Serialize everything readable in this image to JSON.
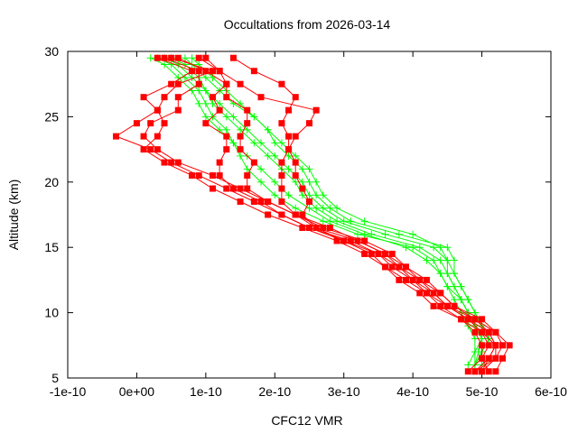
{
  "chart_data": {
    "type": "line",
    "title": "Occultations from 2026-03-14",
    "xlabel": "CFC12 VMR",
    "ylabel": "Altitude (km)",
    "xlim": [
      -1e-10,
      6e-10
    ],
    "ylim": [
      5,
      30
    ],
    "xticks": [
      -1e-10,
      0,
      1e-10,
      2e-10,
      3e-10,
      4e-10,
      5e-10,
      6e-10
    ],
    "xtick_labels": [
      "-1e-10",
      "0e+00",
      "1e-10",
      "2e-10",
      "3e-10",
      "4e-10",
      "5e-10",
      "6e-10"
    ],
    "yticks": [
      5,
      10,
      15,
      20,
      25,
      30
    ],
    "ytick_labels": [
      "5",
      "10",
      "15",
      "20",
      "25",
      "30"
    ],
    "grid": false,
    "colors": {
      "red_series": "#ff0000",
      "green_series": "#00ff00"
    },
    "red_altitudes": [
      5.5,
      6.5,
      7.5,
      8.5,
      9.5,
      10.5,
      11.5,
      12.5,
      13.5,
      14.5,
      15.5,
      16.5,
      17.5,
      18.5,
      19.5,
      20.5,
      21.5,
      22.5,
      23.5,
      24.5,
      25.5,
      26.5,
      27.5,
      28.5,
      29.5
    ],
    "red_profiles": [
      [
        4.9e-10,
        5.1e-10,
        5.2e-10,
        5.1e-10,
        4.9e-10,
        4.5e-10,
        4.3e-10,
        4.1e-10,
        3.8e-10,
        3.5e-10,
        3.1e-10,
        2.5e-10,
        2.1e-10,
        1.7e-10,
        1.3e-10,
        9e-11,
        5e-11,
        2e-11,
        -3e-11,
        0.0,
        3e-11,
        1e-11,
        5e-11,
        8e-11,
        3e-11
      ],
      [
        5.2e-10,
        5.3e-10,
        5.4e-10,
        5.2e-10,
        4.9e-10,
        4.6e-10,
        4.4e-10,
        4.2e-10,
        3.9e-10,
        3.7e-10,
        3.3e-10,
        2.7e-10,
        2.3e-10,
        1.9e-10,
        1.5e-10,
        1.1e-10,
        6e-11,
        3e-11,
        1e-11,
        2e-11,
        6e-11,
        6e-11,
        9e-11,
        9e-11,
        4e-11
      ],
      [
        4.8e-10,
        5e-10,
        5e-10,
        4.9e-10,
        4.7e-10,
        4.3e-10,
        4.1e-10,
        3.8e-10,
        3.6e-10,
        3.3e-10,
        2.9e-10,
        2.4e-10,
        1.9e-10,
        1.5e-10,
        1.1e-10,
        8e-11,
        4e-11,
        1e-11,
        3e-11,
        4e-11,
        3e-11,
        4e-11,
        6e-11,
        1.1e-10,
        5e-11
      ],
      [
        5e-10,
        5.1e-10,
        5.2e-10,
        5e-10,
        4.8e-10,
        4.5e-10,
        4.2e-10,
        4e-10,
        3.7e-10,
        3.5e-10,
        3e-10,
        2.5e-10,
        2.1e-10,
        1.8e-10,
        1.4e-10,
        1.2e-10,
        1.2e-10,
        1.3e-10,
        1.3e-10,
        1e-10,
        1.2e-10,
        1.1e-10,
        1.3e-10,
        1e-10,
        6e-11
      ],
      [
        4.9e-10,
        5.2e-10,
        5.3e-10,
        5.2e-10,
        5e-10,
        4.6e-10,
        4.4e-10,
        4.1e-10,
        3.9e-10,
        3.6e-10,
        3.2e-10,
        2.6e-10,
        2.3e-10,
        2.1e-10,
        2.1e-10,
        2.1e-10,
        2.1e-10,
        2.2e-10,
        2.2e-10,
        2.1e-10,
        2.2e-10,
        2.3e-10,
        2.1e-10,
        1.7e-10,
        1.4e-10
      ],
      [
        5.1e-10,
        5e-10,
        5.1e-10,
        5e-10,
        4.7e-10,
        4.4e-10,
        4.2e-10,
        3.9e-10,
        3.6e-10,
        3.4e-10,
        3e-10,
        2.6e-10,
        2.4e-10,
        2.5e-10,
        2.4e-10,
        2.3e-10,
        2.3e-10,
        2.2e-10,
        2.3e-10,
        2.5e-10,
        2.6e-10,
        1.8e-10,
        1.5e-10,
        1.2e-10,
        9e-11
      ],
      [
        5e-10,
        5.2e-10,
        5.2e-10,
        5.1e-10,
        4.8e-10,
        4.5e-10,
        4.3e-10,
        4e-10,
        3.8e-10,
        3.6e-10,
        3.2e-10,
        2.8e-10,
        2.3e-10,
        1.9e-10,
        1.6e-10,
        1.6e-10,
        1.7e-10,
        1.5e-10,
        1.5e-10,
        1.6e-10,
        1.6e-10,
        1.3e-10,
        1.3e-10,
        1.2e-10,
        1e-10
      ]
    ],
    "green_altitudes": [
      6,
      7,
      8,
      9,
      10,
      11,
      12,
      13,
      14,
      15,
      16,
      17,
      18,
      19,
      20,
      21,
      22,
      23,
      24,
      25,
      26,
      27,
      28,
      29,
      29.5
    ],
    "green_profiles": [
      [
        4.9e-10,
        4.95e-10,
        5e-10,
        4.9e-10,
        4.8e-10,
        4.7e-10,
        4.6e-10,
        4.5e-10,
        4.4e-10,
        4.1e-10,
        3.4e-10,
        2.9e-10,
        2.6e-10,
        2.4e-10,
        2.3e-10,
        2.1e-10,
        1.9e-10,
        1.7e-10,
        1.5e-10,
        1.3e-10,
        1.1e-10,
        1e-10,
        8e-11,
        6e-11,
        4e-11
      ],
      [
        4.9e-10,
        5e-10,
        5.1e-10,
        5e-10,
        4.9e-10,
        4.8e-10,
        4.7e-10,
        4.6e-10,
        4.5e-10,
        4.4e-10,
        4e-10,
        3.3e-10,
        2.9e-10,
        2.7e-10,
        2.6e-10,
        2.5e-10,
        2.3e-10,
        2.1e-10,
        1.9e-10,
        1.7e-10,
        1.5e-10,
        1.3e-10,
        1.1e-10,
        9e-11,
        8e-11
      ],
      [
        4.8e-10,
        4.9e-10,
        4.9e-10,
        4.8e-10,
        4.7e-10,
        4.6e-10,
        4.5e-10,
        4.4e-10,
        4.3e-10,
        4e-10,
        3.2e-10,
        2.7e-10,
        2.3e-10,
        2e-10,
        1.8e-10,
        1.6e-10,
        1.5e-10,
        1.4e-10,
        1.2e-10,
        1e-10,
        9e-11,
        8e-11,
        6e-11,
        4e-11,
        2e-11
      ],
      [
        5e-10,
        5e-10,
        5.1e-10,
        5e-10,
        4.9e-10,
        4.8e-10,
        4.7e-10,
        4.6e-10,
        4.6e-10,
        4.5e-10,
        3.8e-10,
        3.1e-10,
        2.8e-10,
        2.6e-10,
        2.5e-10,
        2.4e-10,
        2.2e-10,
        2e-10,
        1.9e-10,
        1.7e-10,
        1.4e-10,
        1.2e-10,
        1e-10,
        8e-11,
        7e-11
      ],
      [
        4.9e-10,
        4.9e-10,
        5e-10,
        4.9e-10,
        4.8e-10,
        4.7e-10,
        4.5e-10,
        4.4e-10,
        4.2e-10,
        3.9e-10,
        3.3e-10,
        2.8e-10,
        2.5e-10,
        2.2e-10,
        2e-10,
        1.8e-10,
        1.6e-10,
        1.4e-10,
        1.3e-10,
        1.1e-10,
        1e-10,
        9e-11,
        7e-11,
        5e-11,
        3e-11
      ],
      [
        4.9e-10,
        5e-10,
        5e-10,
        4.9e-10,
        4.8e-10,
        4.7e-10,
        4.6e-10,
        4.5e-10,
        4.5e-10,
        4.3e-10,
        3.6e-10,
        3e-10,
        2.7e-10,
        2.5e-10,
        2.4e-10,
        2.2e-10,
        2e-10,
        1.8e-10,
        1.6e-10,
        1.4e-10,
        1.2e-10,
        1e-10,
        9e-11,
        7e-11,
        5e-11
      ]
    ]
  }
}
